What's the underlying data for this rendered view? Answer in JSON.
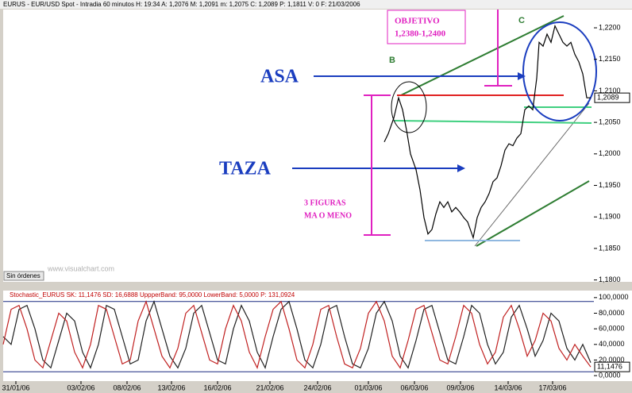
{
  "header": "EURUS - EUR/USD Spot - Intradia 60 minutos H: 19:34 A: 1,2076 M: 1,2091 m: 1,2075 C: 1,2089 P: 1,1811 V: 0 F: 21/03/2006",
  "annotations": {
    "objetivo_title": "OBJETIVO",
    "objetivo_range": "1,2380-1,2400",
    "asa": "ASA",
    "taza": "TAZA",
    "figuras_1": "3 FIGURAS",
    "figuras_2": "MA O MENO",
    "point_b": "B",
    "point_c": "C",
    "status": "Sin órdenes",
    "watermark": "www.visualchart.com"
  },
  "chart_data": [
    {
      "type": "line",
      "last_value_label": "1,2089",
      "x": [
        240,
        242.5,
        246,
        249,
        251.5,
        254,
        256.5,
        260,
        262.5,
        265,
        267.5,
        270,
        272.5,
        275,
        277.5,
        280,
        282.5,
        285,
        287.5,
        290,
        292.5,
        296,
        298.5,
        301,
        303.5,
        306,
        308.5,
        311,
        313.5,
        316,
        318.5,
        321,
        323.5,
        326,
        328.5,
        331,
        333.5,
        336,
        337.5,
        340,
        342.5,
        345,
        347.5,
        350,
        352.5,
        355,
        357.5,
        360,
        362.5,
        365,
        367.5,
        370
      ],
      "series": [
        {
          "name": "EURUS",
          "color": "#000000",
          "values": [
            1.2019,
            1.2032,
            1.2057,
            1.2089,
            1.207,
            1.2038,
            1.2,
            1.1975,
            1.1943,
            1.1899,
            1.1873,
            1.188,
            1.1905,
            1.1924,
            1.1915,
            1.1924,
            1.1908,
            1.1915,
            1.1908,
            1.1899,
            1.1892,
            1.1867,
            1.1899,
            1.1915,
            1.1924,
            1.1937,
            1.1956,
            1.1962,
            1.1981,
            1.2006,
            1.2016,
            1.2013,
            1.2025,
            1.2032,
            1.207,
            1.2076,
            1.207,
            1.212,
            1.2177,
            1.2171,
            1.219,
            1.2177,
            1.2203,
            1.219,
            1.2177,
            1.2171,
            1.2177,
            1.2158,
            1.2146,
            1.2127,
            1.2089,
            1.2089
          ]
        }
      ],
      "xlim": [
        0,
        372
      ],
      "ylim": [
        1.1797,
        1.2229
      ],
      "yticks": [
        {
          "value": 1.18,
          "label": "1,1800"
        },
        {
          "value": 1.185,
          "label": "1,1850"
        },
        {
          "value": 1.19,
          "label": "1,1900"
        },
        {
          "value": 1.195,
          "label": "1,1950"
        },
        {
          "value": 1.2,
          "label": "1,2000"
        },
        {
          "value": 1.205,
          "label": "1,2050"
        },
        {
          "value": 1.21,
          "label": "1,2100"
        },
        {
          "value": 1.215,
          "label": "1,2150"
        },
        {
          "value": 1.22,
          "label": "1,2200"
        }
      ]
    },
    {
      "type": "line",
      "title": "Stochastic_EURUS SK: 11,1476 SD: 16,6888 UppperBand: 95,0000 LowerBand: 5,0000 P: 131,0924",
      "last_value_label": "11,1476",
      "x": [
        0,
        5,
        10,
        15,
        20,
        25,
        30,
        35,
        40,
        45,
        50,
        55,
        60,
        65,
        70,
        75,
        80,
        85,
        90,
        95,
        100,
        105,
        110,
        115,
        120,
        125,
        130,
        135,
        140,
        145,
        150,
        155,
        160,
        165,
        170,
        175,
        180,
        185,
        190,
        195,
        200,
        205,
        210,
        215,
        220,
        225,
        230,
        235,
        240,
        245,
        250,
        255,
        260,
        265,
        270,
        275,
        280,
        285,
        290,
        295,
        300,
        305,
        310,
        315,
        320,
        325,
        330,
        335,
        340,
        345,
        350,
        355,
        360,
        365,
        370
      ],
      "series": [
        {
          "name": "SD",
          "color": "#202020",
          "values": [
            50,
            40,
            85,
            90,
            60,
            20,
            10,
            45,
            80,
            70,
            30,
            10,
            40,
            90,
            85,
            50,
            15,
            20,
            70,
            95,
            60,
            25,
            10,
            35,
            80,
            90,
            55,
            20,
            15,
            60,
            90,
            70,
            30,
            10,
            50,
            85,
            95,
            60,
            20,
            10,
            40,
            85,
            90,
            50,
            15,
            10,
            35,
            80,
            95,
            70,
            25,
            10,
            45,
            85,
            90,
            55,
            20,
            15,
            50,
            90,
            80,
            40,
            15,
            30,
            75,
            90,
            60,
            25,
            45,
            80,
            70,
            35,
            20,
            40,
            16.6888
          ]
        },
        {
          "name": "SK",
          "color": "#c02020",
          "values": [
            40,
            85,
            90,
            60,
            20,
            10,
            45,
            80,
            70,
            30,
            10,
            40,
            90,
            85,
            50,
            15,
            20,
            70,
            95,
            60,
            25,
            10,
            35,
            80,
            90,
            55,
            20,
            15,
            60,
            90,
            70,
            30,
            10,
            50,
            85,
            95,
            60,
            20,
            10,
            40,
            85,
            90,
            50,
            15,
            10,
            35,
            80,
            95,
            70,
            25,
            10,
            45,
            85,
            90,
            55,
            20,
            15,
            50,
            90,
            80,
            40,
            15,
            30,
            75,
            90,
            60,
            25,
            45,
            80,
            70,
            35,
            20,
            40,
            25,
            11.1476
          ]
        }
      ],
      "bands": [
        95,
        5
      ],
      "xlim": [
        0,
        372
      ],
      "ylim": [
        -7,
        109
      ],
      "yticks": [
        {
          "value": 0,
          "label": "0,0000"
        },
        {
          "value": 20,
          "label": "20,0000"
        },
        {
          "value": 40,
          "label": "40,0000"
        },
        {
          "value": 60,
          "label": "60,0000"
        },
        {
          "value": 80,
          "label": "80,0000"
        },
        {
          "value": 100,
          "label": "100,0000"
        }
      ],
      "xticks": [
        {
          "value": 8,
          "label": "31/01/06"
        },
        {
          "value": 49,
          "label": "03/02/06"
        },
        {
          "value": 78,
          "label": "08/02/06"
        },
        {
          "value": 106,
          "label": "13/02/06"
        },
        {
          "value": 135,
          "label": "16/02/06"
        },
        {
          "value": 168,
          "label": "21/02/06"
        },
        {
          "value": 198,
          "label": "24/02/06"
        },
        {
          "value": 230,
          "label": "01/03/06"
        },
        {
          "value": 259,
          "label": "06/03/06"
        },
        {
          "value": 288,
          "label": "09/03/06"
        },
        {
          "value": 318,
          "label": "14/03/06"
        },
        {
          "value": 346,
          "label": "17/03/06"
        }
      ]
    }
  ]
}
